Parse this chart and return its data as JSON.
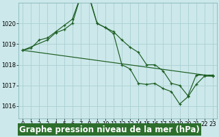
{
  "bg_color": "#cce8ea",
  "grid_color": "#aacfd2",
  "line_color": "#1a5c20",
  "xlabel": "Graphe pression niveau de la mer (hPa)",
  "xlabel_fontsize": 8.5,
  "xlabel_bg": "#2d6e2d",
  "xlabel_fg": "#ffffff",
  "ylim": [
    1015.4,
    1021.0
  ],
  "xlim": [
    -0.5,
    23.5
  ],
  "yticks": [
    1016,
    1017,
    1018,
    1019,
    1020
  ],
  "xticks": [
    0,
    1,
    2,
    3,
    4,
    5,
    6,
    7,
    8,
    9,
    10,
    11,
    12,
    13,
    14,
    15,
    16,
    17,
    18,
    19,
    20,
    21,
    22,
    23
  ],
  "tick_fontsize": 6.0,
  "series": [
    {
      "x": [
        0,
        1,
        2,
        3,
        4,
        5,
        6,
        7,
        8,
        9,
        10,
        11,
        12,
        13,
        14,
        15,
        16,
        17,
        18,
        19,
        20,
        21,
        22,
        23
      ],
      "y": [
        1018.7,
        1018.8,
        1019.2,
        1019.3,
        1019.6,
        1019.9,
        1020.2,
        1021.3,
        1021.3,
        1020.0,
        1019.8,
        1019.6,
        1019.2,
        1018.85,
        1018.6,
        1018.0,
        1018.0,
        1017.7,
        1017.1,
        1017.0,
        1016.5,
        1017.5,
        1017.5,
        1017.5
      ]
    },
    {
      "x": [
        0,
        3,
        4,
        5,
        6,
        7,
        8,
        9,
        10,
        11,
        12,
        13,
        14,
        15,
        16,
        17,
        18,
        19,
        20,
        21,
        22,
        23
      ],
      "y": [
        1018.7,
        1019.2,
        1019.55,
        1019.7,
        1020.0,
        1021.3,
        1021.4,
        1020.0,
        1019.8,
        1019.5,
        1018.0,
        1017.8,
        1017.1,
        1017.05,
        1017.1,
        1016.85,
        1016.7,
        1016.1,
        1016.45,
        1017.05,
        1017.45,
        1017.45
      ]
    },
    {
      "x": [
        0,
        23
      ],
      "y": [
        1018.7,
        1017.45
      ]
    }
  ]
}
